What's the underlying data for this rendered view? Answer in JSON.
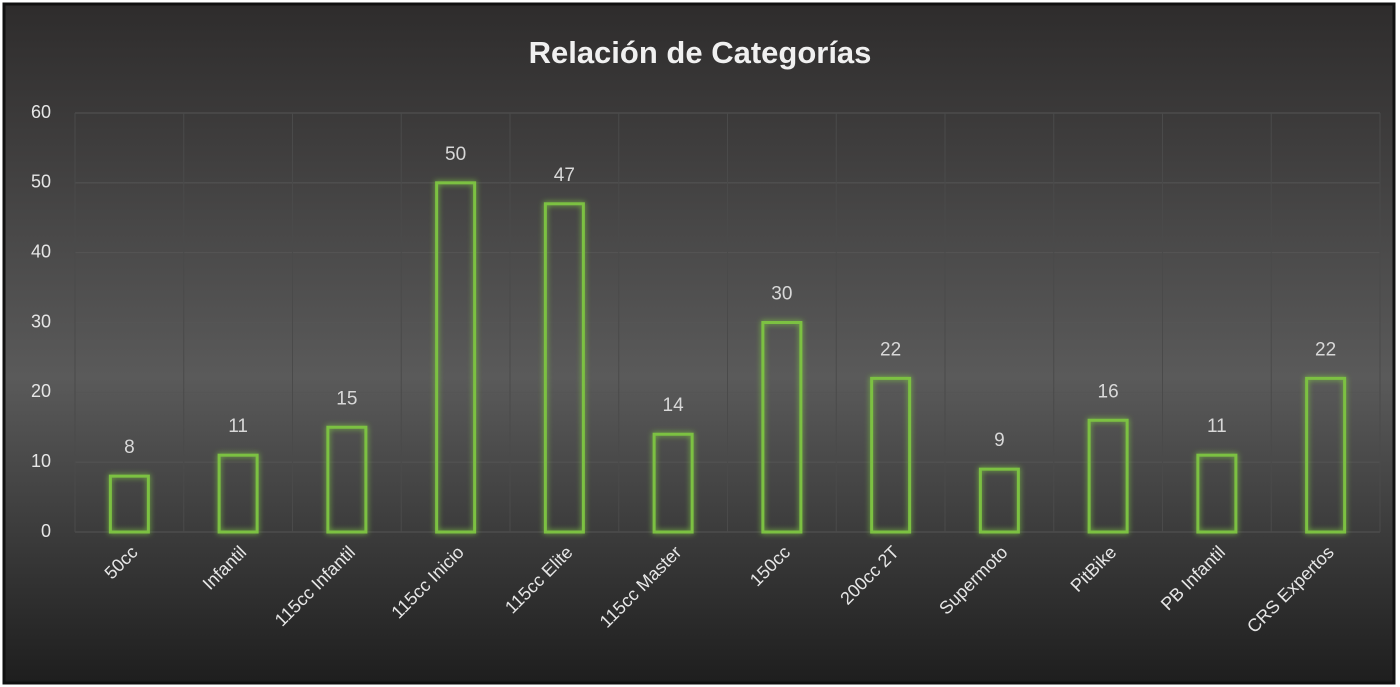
{
  "chart_data": {
    "type": "bar",
    "title": "Relación de Categorías",
    "categories": [
      "50cc",
      "Infantil",
      "115cc Infantil",
      "115cc Inicio",
      "115cc Elite",
      "115cc Master",
      "150cc",
      "200cc 2T",
      "Supermoto",
      "PitBike",
      "PB Infantil",
      "CRS Expertos"
    ],
    "values": [
      8,
      11,
      15,
      50,
      47,
      14,
      30,
      22,
      9,
      16,
      11,
      22
    ],
    "color": "#7cc142",
    "ylim": [
      0,
      60
    ],
    "yticks": [
      0,
      10,
      20,
      30,
      40,
      50,
      60
    ],
    "grid": true
  }
}
